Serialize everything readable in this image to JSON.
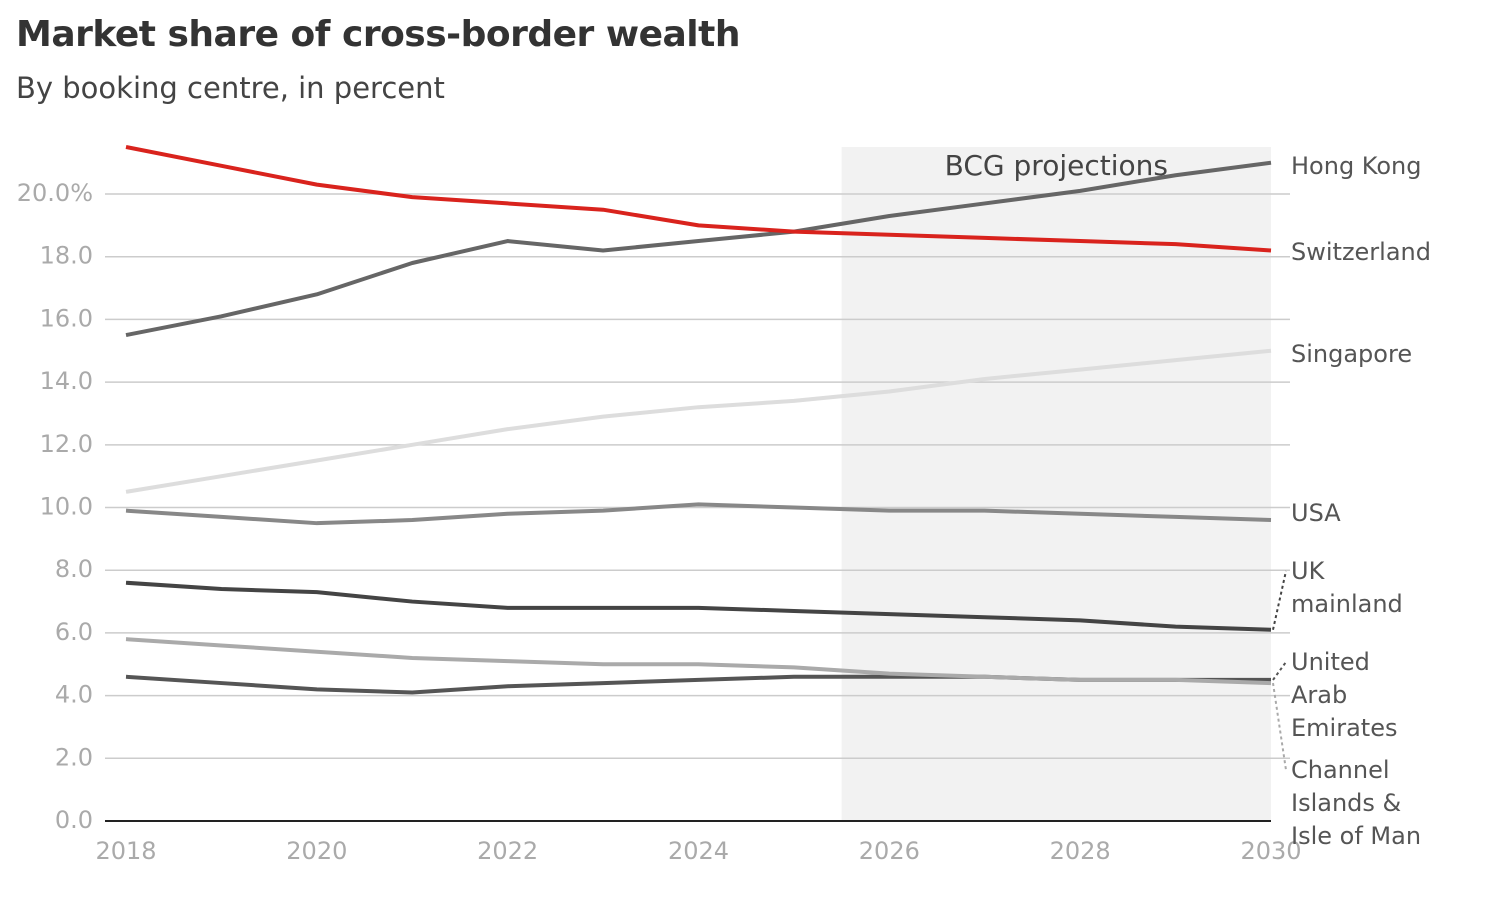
{
  "chart_data": {
    "type": "line",
    "title": "Market share of cross-border wealth",
    "subtitle": "By booking centre, in percent",
    "x": [
      2018,
      2019,
      2020,
      2021,
      2022,
      2023,
      2024,
      2025,
      2026,
      2027,
      2028,
      2029,
      2030
    ],
    "xlim": [
      2018,
      2030
    ],
    "xticks": [
      2018,
      2020,
      2022,
      2024,
      2026,
      2028,
      2030
    ],
    "ylim": [
      0,
      21.5
    ],
    "yticks": [
      {
        "value": 0,
        "label": "0.0"
      },
      {
        "value": 2,
        "label": "2.0"
      },
      {
        "value": 4,
        "label": "4.0"
      },
      {
        "value": 6,
        "label": "6.0"
      },
      {
        "value": 8,
        "label": "8.0"
      },
      {
        "value": 10,
        "label": "10.0"
      },
      {
        "value": 12,
        "label": "12.0"
      },
      {
        "value": 14,
        "label": "14.0"
      },
      {
        "value": 16,
        "label": "16.0"
      },
      {
        "value": 18,
        "label": "18.0"
      },
      {
        "value": 20,
        "label": "20.0%"
      }
    ],
    "grid": true,
    "annotations": [
      {
        "text": "BCG projections",
        "x_start": 2025.5,
        "x_end": 2030
      }
    ],
    "series": [
      {
        "name": "Hong Kong",
        "color": "#666666",
        "values": [
          15.5,
          16.1,
          16.8,
          17.8,
          18.5,
          18.2,
          18.5,
          18.8,
          19.3,
          19.7,
          20.1,
          20.6,
          21.0
        ]
      },
      {
        "name": "Switzerland",
        "color": "#d9231d",
        "values": [
          21.5,
          20.9,
          20.3,
          19.9,
          19.7,
          19.5,
          19.0,
          18.8,
          18.7,
          18.6,
          18.5,
          18.4,
          18.2
        ]
      },
      {
        "name": "Singapore",
        "color": "#dddddd",
        "values": [
          10.5,
          11.0,
          11.5,
          12.0,
          12.5,
          12.9,
          13.2,
          13.4,
          13.7,
          14.1,
          14.4,
          14.7,
          15.0
        ]
      },
      {
        "name": "USA",
        "color": "#888888",
        "values": [
          9.9,
          9.7,
          9.5,
          9.6,
          9.8,
          9.9,
          10.1,
          10.0,
          9.9,
          9.9,
          9.8,
          9.7,
          9.6
        ]
      },
      {
        "name": "UK mainland",
        "color": "#444444",
        "values": [
          7.6,
          7.4,
          7.3,
          7.0,
          6.8,
          6.8,
          6.8,
          6.7,
          6.6,
          6.5,
          6.4,
          6.2,
          6.1
        ]
      },
      {
        "name": "United Arab Emirates",
        "color": "#555555",
        "values": [
          4.6,
          4.4,
          4.2,
          4.1,
          4.3,
          4.4,
          4.5,
          4.6,
          4.6,
          4.6,
          4.5,
          4.5,
          4.5
        ]
      },
      {
        "name": "Channel Islands & Isle of Man",
        "color": "#aaaaaa",
        "values": [
          5.8,
          5.6,
          5.4,
          5.2,
          5.1,
          5.0,
          5.0,
          4.9,
          4.7,
          4.6,
          4.5,
          4.5,
          4.4
        ]
      }
    ]
  }
}
